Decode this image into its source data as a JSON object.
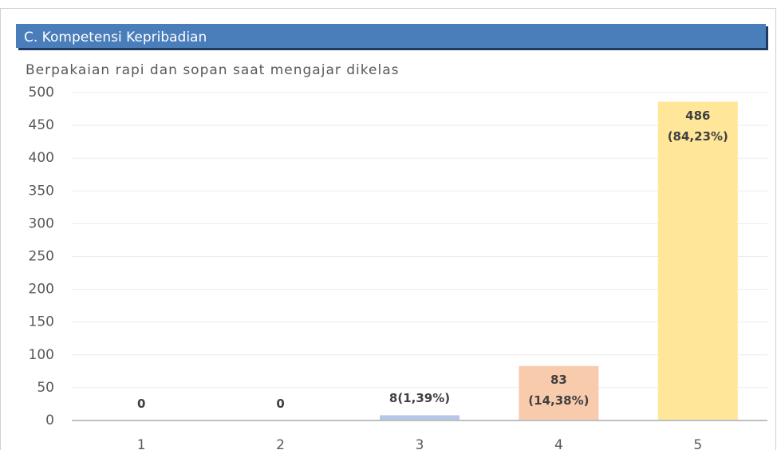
{
  "chart_data": {
    "type": "bar",
    "header": "C. Kompetensi Kepribadian",
    "title": "Berpakaian rapi dan sopan saat mengajar dikelas",
    "categories": [
      "1",
      "2",
      "3",
      "4",
      "5"
    ],
    "values": [
      0,
      0,
      8,
      83,
      486
    ],
    "value_labels": [
      "0",
      "0",
      "8(1,39%)",
      "83\n(14,38%)",
      "486\n(84,23%)"
    ],
    "colors": [
      "#b4c7e7",
      "#b4c7e7",
      "#b4c7e7",
      "#f8cbad",
      "#ffe699"
    ],
    "ylim": [
      0,
      500
    ],
    "yticks": [
      0,
      50,
      100,
      150,
      200,
      250,
      300,
      350,
      400,
      450,
      500
    ],
    "grid": true
  }
}
